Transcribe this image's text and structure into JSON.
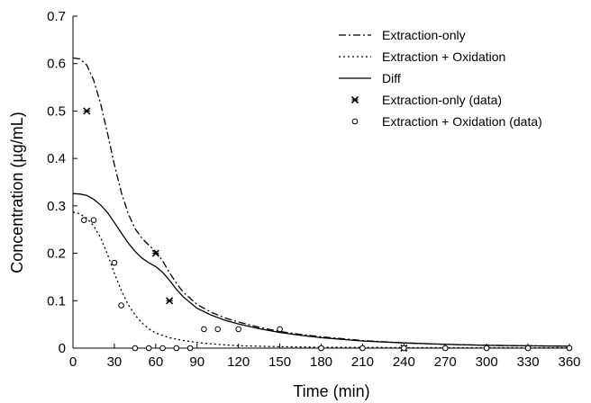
{
  "chart_data": {
    "type": "line",
    "title": "",
    "xlabel": "Time (min)",
    "ylabel": "Concentration (µg/mL)",
    "xlim": [
      0,
      360
    ],
    "ylim": [
      0,
      0.7
    ],
    "xticks": [
      0,
      30,
      60,
      90,
      120,
      150,
      180,
      210,
      240,
      270,
      300,
      330,
      360
    ],
    "xtick_labels": [
      "0",
      "30",
      "60",
      "90",
      "120",
      "150",
      "180",
      "210",
      "240",
      "270",
      "300",
      "330",
      "360"
    ],
    "yticks": [
      0,
      0.1,
      0.2,
      0.3,
      0.4,
      0.5,
      0.6,
      0.7
    ],
    "ytick_labels": [
      "0",
      "0.1",
      "0.2",
      "0.3",
      "0.4",
      "0.5",
      "0.6",
      "0.7"
    ],
    "grid": false,
    "legend_position": "top-right",
    "series": [
      {
        "name": "Extraction-only",
        "kind": "line",
        "style": "dash-dot",
        "color": "#000000",
        "points": [
          [
            0,
            0.612
          ],
          [
            5,
            0.61
          ],
          [
            10,
            0.597
          ],
          [
            15,
            0.565
          ],
          [
            20,
            0.516
          ],
          [
            25,
            0.454
          ],
          [
            30,
            0.387
          ],
          [
            35,
            0.329
          ],
          [
            40,
            0.284
          ],
          [
            45,
            0.252
          ],
          [
            50,
            0.232
          ],
          [
            55,
            0.217
          ],
          [
            60,
            0.204
          ],
          [
            65,
            0.184
          ],
          [
            70,
            0.159
          ],
          [
            75,
            0.137
          ],
          [
            80,
            0.118
          ],
          [
            90,
            0.092
          ],
          [
            100,
            0.076
          ],
          [
            110,
            0.064
          ],
          [
            120,
            0.055
          ],
          [
            135,
            0.044
          ],
          [
            150,
            0.035
          ],
          [
            165,
            0.029
          ],
          [
            180,
            0.024
          ],
          [
            210,
            0.016
          ],
          [
            240,
            0.011
          ],
          [
            270,
            0.008
          ],
          [
            300,
            0.006
          ],
          [
            330,
            0.005
          ],
          [
            360,
            0.004
          ]
        ]
      },
      {
        "name": "Extraction + Oxidation",
        "kind": "line",
        "style": "dotted",
        "color": "#000000",
        "points": [
          [
            0,
            0.287
          ],
          [
            5,
            0.283
          ],
          [
            10,
            0.274
          ],
          [
            15,
            0.258
          ],
          [
            20,
            0.233
          ],
          [
            25,
            0.198
          ],
          [
            30,
            0.158
          ],
          [
            35,
            0.122
          ],
          [
            40,
            0.092
          ],
          [
            45,
            0.07
          ],
          [
            50,
            0.053
          ],
          [
            55,
            0.041
          ],
          [
            60,
            0.032
          ],
          [
            70,
            0.022
          ],
          [
            80,
            0.016
          ],
          [
            90,
            0.012
          ],
          [
            100,
            0.009
          ],
          [
            120,
            0.005
          ],
          [
            150,
            0.003
          ],
          [
            180,
            0.002
          ],
          [
            240,
            0.001
          ],
          [
            300,
            0.001
          ],
          [
            360,
            0.001
          ]
        ]
      },
      {
        "name": "Diff",
        "kind": "line",
        "style": "solid",
        "color": "#000000",
        "points": [
          [
            0,
            0.326
          ],
          [
            5,
            0.325
          ],
          [
            10,
            0.322
          ],
          [
            15,
            0.314
          ],
          [
            20,
            0.302
          ],
          [
            25,
            0.286
          ],
          [
            30,
            0.265
          ],
          [
            35,
            0.243
          ],
          [
            40,
            0.222
          ],
          [
            45,
            0.204
          ],
          [
            50,
            0.19
          ],
          [
            55,
            0.18
          ],
          [
            60,
            0.172
          ],
          [
            65,
            0.16
          ],
          [
            70,
            0.143
          ],
          [
            75,
            0.124
          ],
          [
            80,
            0.108
          ],
          [
            90,
            0.084
          ],
          [
            100,
            0.07
          ],
          [
            110,
            0.059
          ],
          [
            120,
            0.051
          ],
          [
            135,
            0.041
          ],
          [
            150,
            0.033
          ],
          [
            165,
            0.027
          ],
          [
            180,
            0.022
          ],
          [
            210,
            0.015
          ],
          [
            240,
            0.011
          ],
          [
            270,
            0.008
          ],
          [
            300,
            0.006
          ],
          [
            330,
            0.005
          ],
          [
            360,
            0.004
          ]
        ]
      },
      {
        "name": "Extraction-only (data)",
        "kind": "scatter",
        "marker": "asterisk",
        "color": "#000000",
        "points": [
          [
            10,
            0.5
          ],
          [
            60,
            0.2
          ],
          [
            70,
            0.1
          ],
          [
            240,
            0.0
          ]
        ]
      },
      {
        "name": "Extraction + Oxidation (data)",
        "kind": "scatter",
        "marker": "circle-open",
        "color": "#000000",
        "points": [
          [
            8,
            0.27
          ],
          [
            15,
            0.27
          ],
          [
            30,
            0.18
          ],
          [
            35,
            0.09
          ],
          [
            45,
            0.0
          ],
          [
            55,
            0.0
          ],
          [
            65,
            0.0
          ],
          [
            75,
            0.0
          ],
          [
            85,
            0.0
          ],
          [
            95,
            0.04
          ],
          [
            105,
            0.04
          ],
          [
            120,
            0.04
          ],
          [
            150,
            0.04
          ],
          [
            180,
            0.0
          ],
          [
            210,
            0.0
          ],
          [
            240,
            0.0
          ],
          [
            270,
            0.0
          ],
          [
            300,
            0.0
          ],
          [
            330,
            0.0
          ],
          [
            360,
            0.0
          ]
        ]
      }
    ]
  }
}
